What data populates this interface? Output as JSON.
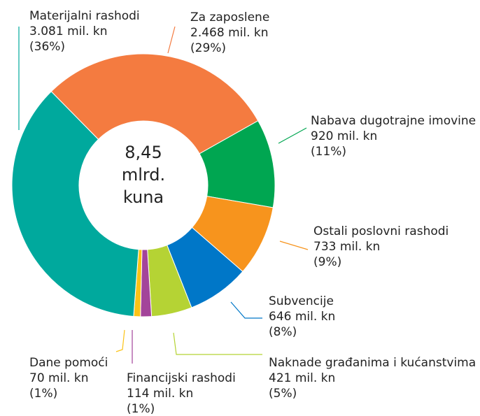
{
  "chart_data": {
    "type": "donut",
    "center_label": [
      "8,45",
      "mlrd.",
      "kuna"
    ],
    "categories": [
      "Za zaposlene",
      "Nabava dugotrajne imovine",
      "Ostali poslovni rashodi",
      "Subvencije",
      "Naknade građanima i kućanstvima",
      "Financijski rashodi",
      "Dane pomoći",
      "Materijalni rashodi"
    ],
    "values": [
      2468,
      920,
      733,
      646,
      421,
      114,
      70,
      3081
    ],
    "value_labels": [
      "2.468 mil. kn",
      "920 mil. kn",
      "733 mil. kn",
      "646 mil. kn",
      "421 mil. kn",
      "114 mil. kn",
      "70 mil. kn",
      "3.081 mil. kn"
    ],
    "percents": [
      29,
      11,
      9,
      8,
      5,
      1,
      1,
      36
    ],
    "percent_labels": [
      "(29%)",
      "(11%)",
      "(9%)",
      "(8%)",
      "(5%)",
      "(1%)",
      "(1%)",
      "(36%)"
    ],
    "colors": [
      "#f47b40",
      "#00a651",
      "#f7941d",
      "#0077c8",
      "#b5d334",
      "#a3449a",
      "#fbc317",
      "#00a99d"
    ]
  }
}
